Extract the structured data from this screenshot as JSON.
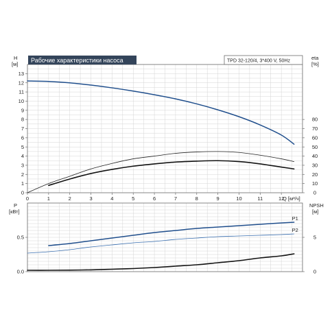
{
  "chart_data": [
    {
      "type": "line",
      "title": "Рабочие характеристики насоса",
      "subtitle": "TPD 32-120/4, 3*400 V, 50Hz",
      "ylabel_left": [
        "H",
        "[м]"
      ],
      "ylabel_right": [
        "eta",
        "[%]"
      ],
      "xlabel": "Q [м³/ч]",
      "xlim": [
        0,
        13
      ],
      "ylim": [
        0,
        14
      ],
      "y2lim": [
        0,
        140
      ],
      "x_ticks": [
        "0",
        "1",
        "2",
        "3",
        "4",
        "5",
        "6",
        "7",
        "8",
        "9",
        "10",
        "11",
        "12"
      ],
      "y_ticks": [
        "0",
        "1",
        "2",
        "3",
        "4",
        "5",
        "6",
        "7",
        "8",
        "9",
        "10",
        "11",
        "12",
        "13"
      ],
      "y2_ticks": [
        "0",
        "10",
        "20",
        "30",
        "40",
        "50",
        "60",
        "70",
        "80"
      ],
      "grid": true,
      "series": [
        {
          "axis": "left",
          "color": "#1f4e8c",
          "width": 1.5,
          "x": [
            0,
            1,
            2,
            3,
            4,
            5,
            6,
            7,
            8,
            9,
            10,
            11,
            12,
            12.6
          ],
          "values": [
            12.2,
            12.15,
            12.0,
            11.75,
            11.45,
            11.1,
            10.7,
            10.25,
            9.7,
            9.05,
            8.3,
            7.4,
            6.3,
            5.3
          ]
        },
        {
          "axis": "right",
          "color": "#222222",
          "width": 0.8,
          "x": [
            0,
            1,
            2,
            3,
            4,
            5,
            6,
            7,
            8,
            9,
            10,
            11,
            12,
            12.6
          ],
          "values": [
            0,
            10,
            18,
            26,
            32,
            37,
            40,
            43,
            44.5,
            45,
            44,
            41,
            37,
            34
          ]
        },
        {
          "axis": "right",
          "color": "#111111",
          "width": 1.6,
          "x": [
            1,
            2,
            3,
            4,
            5,
            6,
            7,
            8,
            9,
            10,
            11,
            12,
            12.6
          ],
          "values": [
            8,
            15,
            21,
            25.5,
            29,
            31.5,
            33.5,
            34.5,
            35,
            34,
            31.5,
            28,
            26
          ]
        }
      ]
    },
    {
      "type": "line",
      "ylabel_left": [
        "P",
        "[кВт]"
      ],
      "ylabel_right": [
        "NPSH",
        "[м]"
      ],
      "xlim": [
        0,
        13
      ],
      "ylim": [
        0,
        1.0
      ],
      "y2lim": [
        0,
        10
      ],
      "y_ticks": [
        "0.0",
        "0.5"
      ],
      "y2_ticks": [
        "0",
        "5"
      ],
      "grid": true,
      "series": [
        {
          "name": "P1",
          "axis": "left",
          "color": "#1f4e8c",
          "width": 1.5,
          "x": [
            1,
            2,
            3,
            4,
            5,
            6,
            7,
            8,
            9,
            10,
            11,
            12,
            12.6
          ],
          "values": [
            0.38,
            0.41,
            0.45,
            0.49,
            0.53,
            0.57,
            0.6,
            0.63,
            0.65,
            0.67,
            0.69,
            0.71,
            0.72
          ]
        },
        {
          "name": "P2",
          "axis": "left",
          "color": "#3a6fb0",
          "width": 0.8,
          "x": [
            0,
            1,
            2,
            3,
            4,
            5,
            6,
            7,
            8,
            9,
            10,
            11,
            12,
            12.6
          ],
          "values": [
            0.27,
            0.29,
            0.32,
            0.36,
            0.39,
            0.42,
            0.44,
            0.47,
            0.49,
            0.51,
            0.52,
            0.53,
            0.54,
            0.55
          ]
        },
        {
          "name": "",
          "axis": "right",
          "color": "#111111",
          "width": 1.6,
          "x": [
            0,
            1,
            2,
            3,
            4,
            5,
            6,
            7,
            8,
            9,
            10,
            11,
            12,
            12.6
          ],
          "values": [
            0.2,
            0.2,
            0.22,
            0.26,
            0.35,
            0.45,
            0.6,
            0.8,
            1.0,
            1.3,
            1.6,
            2.0,
            2.3,
            2.6
          ]
        }
      ]
    }
  ]
}
